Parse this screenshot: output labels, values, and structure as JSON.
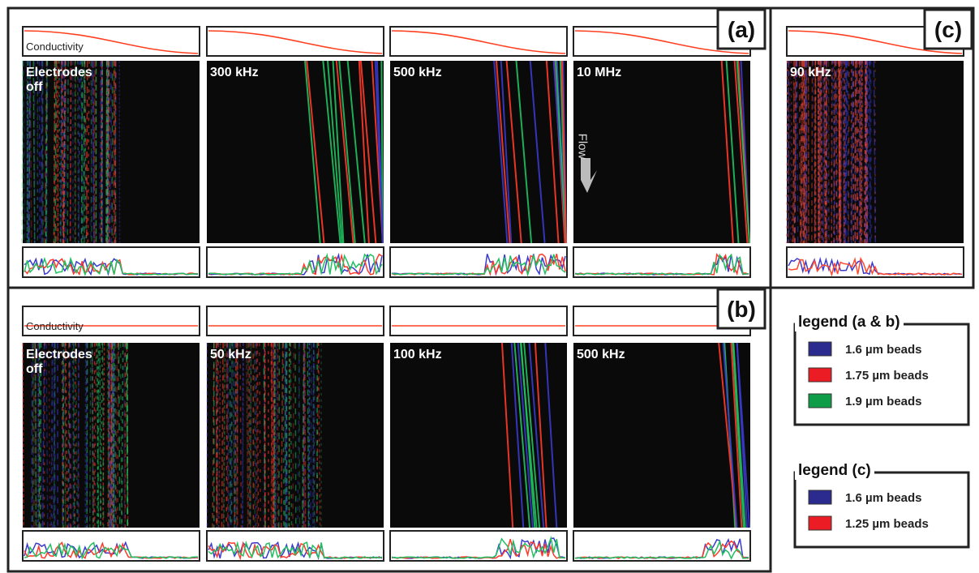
{
  "panels": {
    "a": {
      "label": "(a)",
      "conductivity_label": "Conductivity",
      "frames": [
        "Electrodes off",
        "300 kHz",
        "500 kHz",
        "10 MHz"
      ],
      "flow_label": "Flow"
    },
    "b": {
      "label": "(b)",
      "conductivity_label": "Conductivity",
      "frames": [
        "Electrodes off",
        "50 kHz",
        "100 kHz",
        "500 kHz"
      ]
    },
    "c": {
      "label": "(c)",
      "frames": [
        "90 kHz"
      ]
    }
  },
  "legends": [
    {
      "title": "legend (a & b)",
      "items": [
        {
          "color": "#2b2a8e",
          "label": "1.6 µm beads"
        },
        {
          "color": "#ec1c24",
          "label": "1.75 µm beads"
        },
        {
          "color": "#0f9d48",
          "label": "1.9 µm beads"
        }
      ]
    },
    {
      "title": "legend (c)",
      "items": [
        {
          "color": "#2b2a8e",
          "label": "1.6 µm beads"
        },
        {
          "color": "#ec1c24",
          "label": "1.25 µm beads"
        }
      ]
    }
  ]
}
